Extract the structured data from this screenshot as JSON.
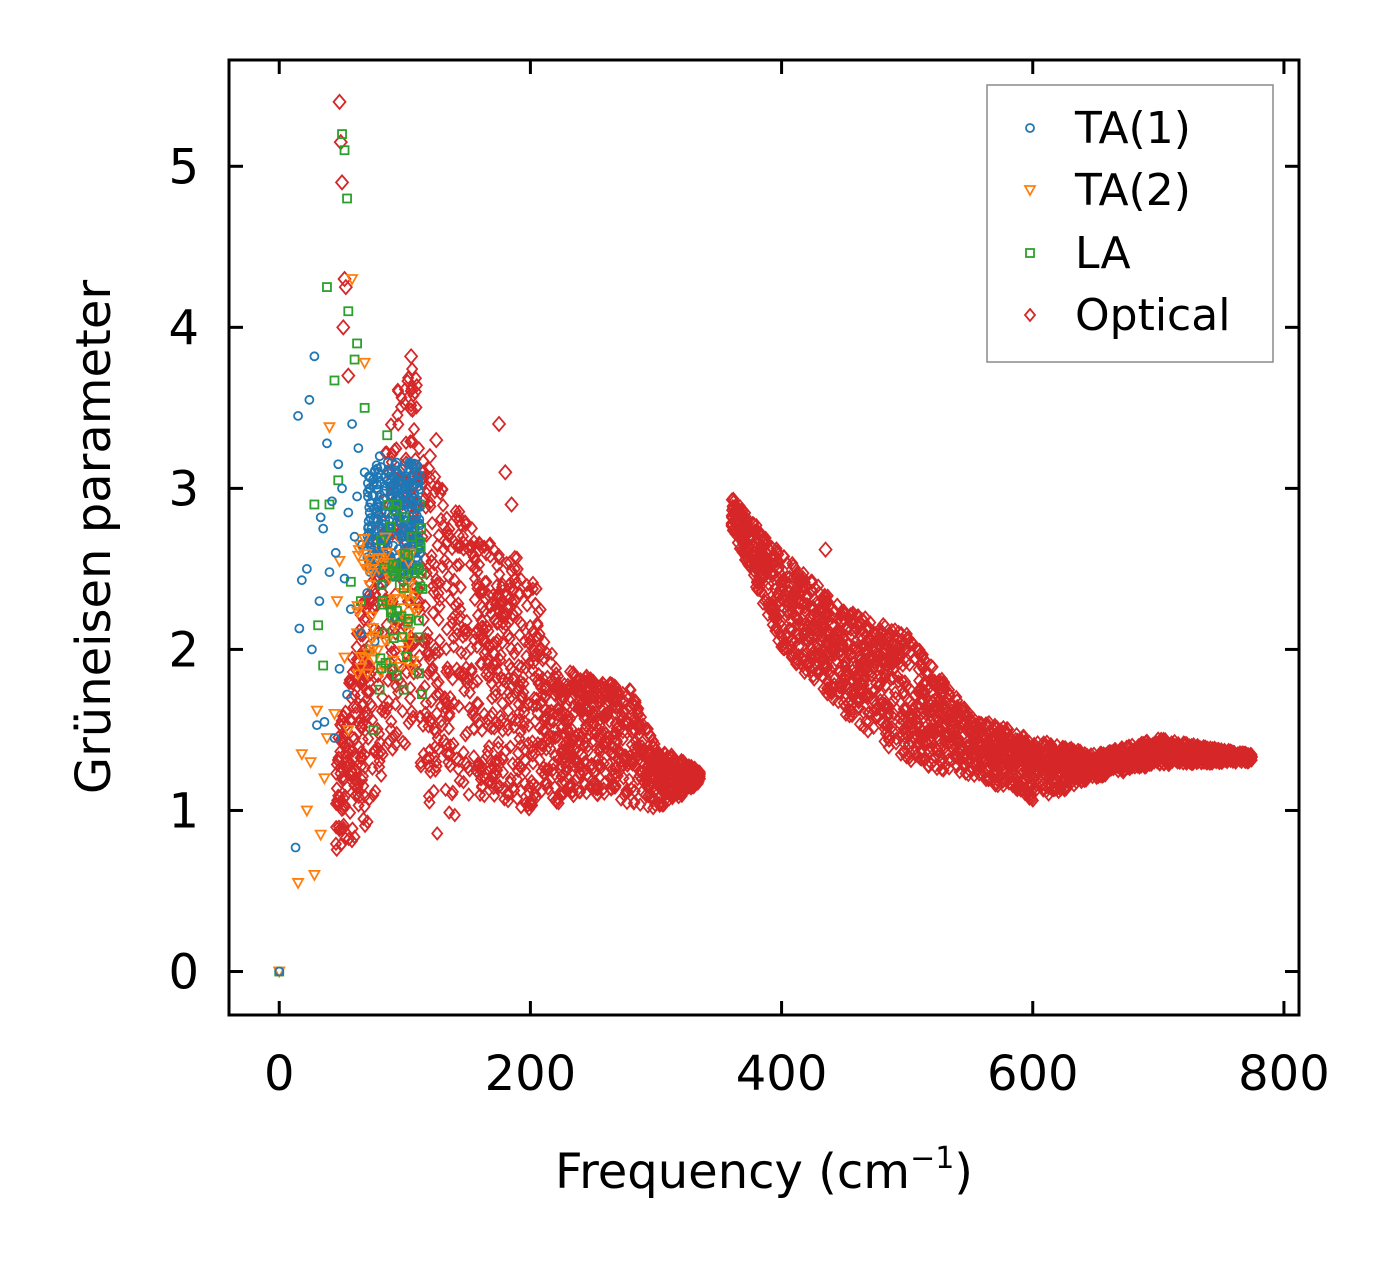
{
  "chart_data": {
    "type": "scatter",
    "title": "",
    "xlabel": "Frequency (cm",
    "xlabel_sup": "−1",
    "xlabel_close": ")",
    "ylabel": "Grüneisen parameter",
    "xlim": [
      -40,
      812
    ],
    "ylim": [
      -0.27,
      5.66
    ],
    "xticks": [
      0,
      200,
      400,
      600,
      800
    ],
    "yticks": [
      0,
      1,
      2,
      3,
      4,
      5
    ],
    "grid": false,
    "legend_position": "top-right",
    "series": [
      {
        "name": "TA(1)",
        "color": "#1f77b4",
        "marker": "circle",
        "x": [
          0,
          13,
          15,
          16,
          18,
          22,
          24,
          26,
          28,
          30,
          32,
          33,
          35,
          36,
          38,
          40,
          42,
          44,
          45,
          47,
          48,
          50,
          52,
          54,
          55,
          57,
          58,
          60,
          62,
          63,
          65,
          66,
          68,
          70,
          72,
          74,
          76,
          78,
          80,
          82,
          84,
          86,
          88,
          90,
          92,
          94,
          96,
          98,
          100,
          102,
          104,
          106,
          108,
          110,
          112
        ],
        "y": [
          0.0,
          0.77,
          3.45,
          2.13,
          2.43,
          2.5,
          3.55,
          2.0,
          3.82,
          1.53,
          2.3,
          2.82,
          2.75,
          1.55,
          3.28,
          2.48,
          2.92,
          1.45,
          2.6,
          3.15,
          1.88,
          3.0,
          2.44,
          1.72,
          2.85,
          2.25,
          3.4,
          2.7,
          2.95,
          3.25,
          2.1,
          2.65,
          3.1,
          2.35,
          2.85,
          2.6,
          2.05,
          2.9,
          3.2,
          2.4,
          2.7,
          3.05,
          2.55,
          2.95,
          2.2,
          3.1,
          2.8,
          2.6,
          3.0,
          2.45,
          3.15,
          2.9,
          2.75,
          3.05,
          2.6
        ]
      },
      {
        "name": "TA(2)",
        "color": "#ff7f0e",
        "marker": "triangle-down",
        "x": [
          0,
          15,
          18,
          22,
          25,
          28,
          30,
          33,
          36,
          38,
          40,
          44,
          46,
          48,
          52,
          55,
          58,
          62,
          64,
          68,
          70,
          72,
          75,
          78,
          82,
          85,
          88,
          92,
          95,
          98,
          100,
          104,
          108,
          110
        ],
        "y": [
          0.0,
          0.55,
          1.35,
          1.0,
          1.3,
          0.6,
          1.62,
          0.85,
          1.2,
          1.45,
          3.38,
          1.6,
          2.3,
          2.55,
          1.95,
          1.5,
          4.3,
          2.1,
          2.65,
          3.78,
          1.85,
          2.4,
          2.0,
          2.6,
          1.9,
          2.3,
          2.5,
          2.15,
          2.7,
          2.35,
          2.55,
          2.4,
          2.65,
          2.5
        ]
      },
      {
        "name": "LA",
        "color": "#2ca02c",
        "marker": "square",
        "x": [
          0,
          28,
          31,
          35,
          38,
          40,
          44,
          47,
          50,
          52,
          54,
          55,
          57,
          60,
          62,
          65,
          68,
          72,
          75,
          78,
          80,
          84,
          86,
          88,
          90,
          94,
          96,
          100,
          104,
          108,
          112
        ],
        "y": [
          0.0,
          2.9,
          2.15,
          1.9,
          4.25,
          2.9,
          3.67,
          3.05,
          5.2,
          5.1,
          4.8,
          4.1,
          2.42,
          3.8,
          3.9,
          2.3,
          3.5,
          2.0,
          1.5,
          2.6,
          1.75,
          2.1,
          3.33,
          2.3,
          2.5,
          2.2,
          2.4,
          2.8,
          2.3,
          2.6,
          2.9
        ]
      },
      {
        "name": "Optical",
        "color": "#d62728",
        "marker": "diamond",
        "regions": [
          {
            "x": [
              45,
              110
            ],
            "ymin_points": [
              [
                45,
                0.7
              ],
              [
                70,
                0.9
              ],
              [
                90,
                1.3
              ],
              [
                110,
                1.5
              ]
            ],
            "ymax_points": [
              [
                45,
                1.4
              ],
              [
                70,
                2.5
              ],
              [
                90,
                3.6
              ],
              [
                110,
                3.8
              ]
            ]
          },
          {
            "x": [
              110,
              335
            ],
            "ymin_points": [
              [
                110,
                1.3
              ],
              [
                125,
                0.85
              ],
              [
                150,
                1.05
              ],
              [
                200,
                1.0
              ],
              [
                250,
                1.1
              ],
              [
                300,
                1.0
              ],
              [
                335,
                1.15
              ]
            ],
            "ymax_points": [
              [
                110,
                3.3
              ],
              [
                130,
                3.0
              ],
              [
                150,
                2.8
              ],
              [
                180,
                2.6
              ],
              [
                200,
                2.55
              ],
              [
                220,
                1.9
              ],
              [
                260,
                1.8
              ],
              [
                280,
                1.75
              ],
              [
                300,
                1.4
              ],
              [
                335,
                1.25
              ]
            ]
          },
          {
            "x": [
              360,
              775
            ],
            "ymin_points": [
              [
                360,
                2.75
              ],
              [
                400,
                2.0
              ],
              [
                450,
                1.6
              ],
              [
                500,
                1.3
              ],
              [
                550,
                1.2
              ],
              [
                600,
                1.05
              ],
              [
                650,
                1.2
              ],
              [
                700,
                1.28
              ],
              [
                775,
                1.3
              ]
            ],
            "ymax_points": [
              [
                360,
                2.95
              ],
              [
                400,
                2.6
              ],
              [
                450,
                2.25
              ],
              [
                500,
                2.1
              ],
              [
                550,
                1.6
              ],
              [
                600,
                1.45
              ],
              [
                650,
                1.35
              ],
              [
                700,
                1.45
              ],
              [
                775,
                1.35
              ]
            ]
          }
        ],
        "outliers": [
          [
            48,
            5.4
          ],
          [
            49,
            5.15
          ],
          [
            50,
            4.9
          ],
          [
            52,
            4.3
          ],
          [
            53,
            4.25
          ],
          [
            51,
            4.0
          ],
          [
            55,
            3.7
          ],
          [
            105,
            3.82
          ],
          [
            108,
            3.6
          ],
          [
            125,
            3.3
          ],
          [
            175,
            3.4
          ],
          [
            180,
            3.1
          ],
          [
            185,
            2.9
          ],
          [
            435,
            2.62
          ],
          [
            120,
            3.2
          ]
        ]
      }
    ],
    "legend": [
      "TA(1)",
      "TA(2)",
      "LA",
      "Optical"
    ]
  }
}
